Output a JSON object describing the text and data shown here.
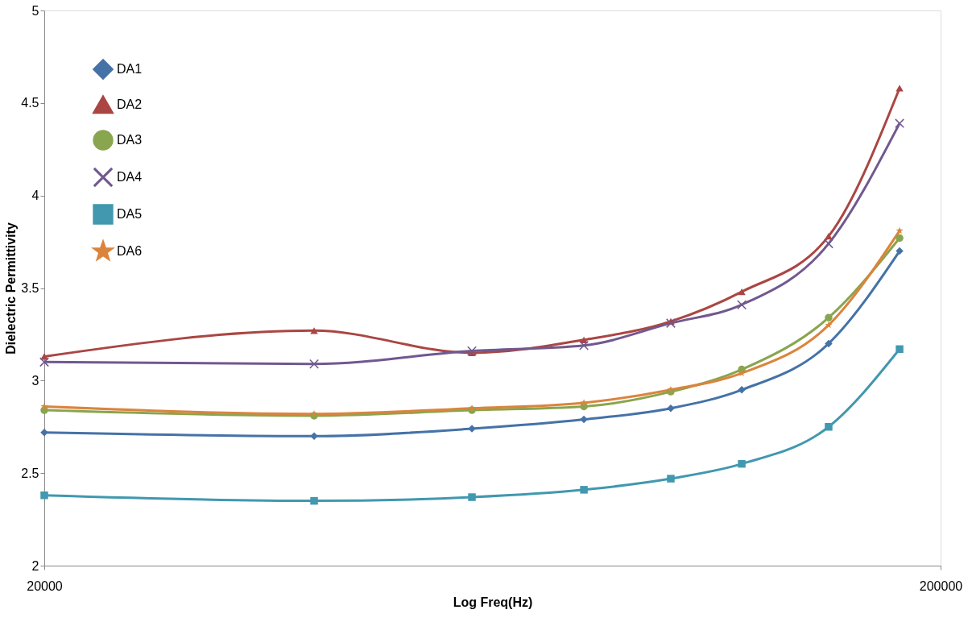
{
  "chart_data": {
    "type": "line",
    "xlabel": "Log Freq(Hz)",
    "ylabel": "Dielectric Permittivity",
    "x": [
      20000,
      40000,
      60000,
      80000,
      100000,
      120000,
      150000,
      180000
    ],
    "series": [
      {
        "name": "DA1",
        "color": "#4572a7",
        "marker": "diamond",
        "values": [
          2.72,
          2.7,
          2.74,
          2.79,
          2.85,
          2.95,
          3.2,
          3.7
        ]
      },
      {
        "name": "DA2",
        "color": "#aa4643",
        "marker": "triangle",
        "values": [
          3.13,
          3.27,
          3.15,
          3.22,
          3.32,
          3.48,
          3.78,
          4.58
        ]
      },
      {
        "name": "DA3",
        "color": "#89a54e",
        "marker": "circle",
        "values": [
          2.84,
          2.81,
          2.84,
          2.86,
          2.94,
          3.06,
          3.34,
          3.77
        ]
      },
      {
        "name": "DA4",
        "color": "#71588f",
        "marker": "cross",
        "values": [
          3.1,
          3.09,
          3.16,
          3.19,
          3.31,
          3.41,
          3.74,
          4.39
        ]
      },
      {
        "name": "DA5",
        "color": "#4198af",
        "marker": "square",
        "values": [
          2.38,
          2.35,
          2.37,
          2.41,
          2.47,
          2.55,
          2.75,
          3.17
        ]
      },
      {
        "name": "DA6",
        "color": "#db843d",
        "marker": "star",
        "values": [
          2.86,
          2.82,
          2.85,
          2.88,
          2.95,
          3.04,
          3.3,
          3.81
        ]
      }
    ],
    "log": "x",
    "xlim": [
      20000,
      200000
    ],
    "xticks": [
      20000,
      200000
    ],
    "ylim": [
      2,
      5
    ],
    "yticks": [
      2,
      2.5,
      3,
      3.5,
      4,
      4.5,
      5
    ],
    "grid": false,
    "legend": "top left",
    "line_style": "solid"
  }
}
